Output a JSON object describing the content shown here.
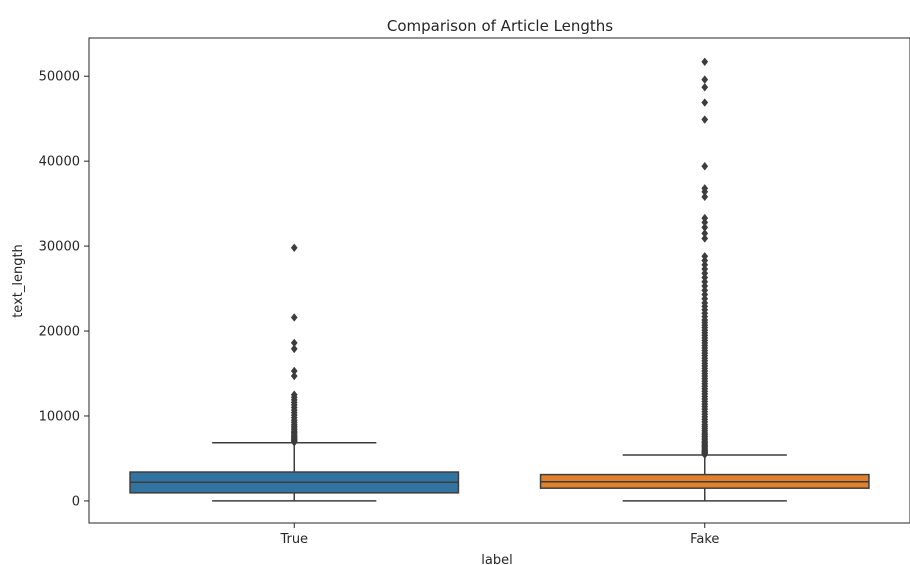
{
  "chart_data": {
    "type": "boxplot",
    "title": "Comparison of Article Lengths",
    "xlabel": "label",
    "ylabel": "text_length",
    "categories": [
      "True",
      "Fake"
    ],
    "ylim": [
      -2600,
      54500
    ],
    "yticks": [
      0,
      10000,
      20000,
      30000,
      40000,
      50000
    ],
    "grid": false,
    "colors": [
      "#3274a1",
      "#e1812c"
    ],
    "boxes": [
      {
        "name": "True",
        "whisker_low": 0,
        "q1": 950,
        "median": 2200,
        "q3": 3400,
        "whisker_high": 6850,
        "outliers": [
          6900,
          7000,
          7100,
          7200,
          7300,
          7450,
          7600,
          7750,
          7900,
          8050,
          8200,
          8400,
          8600,
          8800,
          9000,
          9250,
          9500,
          9800,
          10100,
          10400,
          10700,
          11000,
          11300,
          11600,
          11900,
          12200,
          12500,
          14700,
          15300,
          17900,
          18600,
          21600,
          29800
        ]
      },
      {
        "name": "Fake",
        "whisker_low": 0,
        "q1": 1500,
        "median": 2250,
        "q3": 3100,
        "whisker_high": 5400,
        "outliers": [
          5450,
          5550,
          5650,
          5750,
          5850,
          5950,
          6100,
          6250,
          6400,
          6550,
          6700,
          6850,
          7000,
          7200,
          7400,
          7600,
          7800,
          8000,
          8250,
          8500,
          8750,
          9000,
          9300,
          9600,
          9900,
          10200,
          10500,
          10800,
          11100,
          11400,
          11700,
          12000,
          12300,
          12600,
          12900,
          13200,
          13500,
          13800,
          14100,
          14400,
          14700,
          15000,
          15300,
          15600,
          15900,
          16200,
          16500,
          16800,
          17100,
          17400,
          17700,
          18000,
          18300,
          18600,
          18900,
          19200,
          19500,
          19800,
          20100,
          20400,
          20700,
          21000,
          21300,
          21700,
          22100,
          22500,
          22900,
          23300,
          23800,
          24300,
          24800,
          25300,
          25800,
          26300,
          26800,
          27300,
          27800,
          28300,
          28800,
          30900,
          31500,
          32200,
          32800,
          33300,
          35800,
          36400,
          36800,
          39400,
          44900,
          46900,
          48700,
          49600,
          51700
        ]
      }
    ]
  }
}
